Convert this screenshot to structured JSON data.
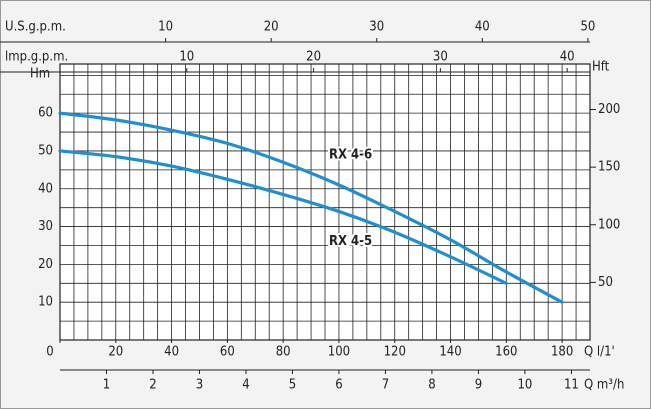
{
  "chart_data": {
    "type": "line",
    "x": [
      0,
      20,
      40,
      60,
      80,
      100,
      120,
      140,
      160,
      180
    ],
    "series": [
      {
        "name": "RX 4-6",
        "color": "#1e8fd0",
        "values": [
          60,
          58.2,
          55.5,
          52,
          47,
          41,
          34,
          26.5,
          18,
          10
        ]
      },
      {
        "name": "RX 4-5",
        "color": "#1e8fd0",
        "values": [
          50,
          48.5,
          46,
          42.5,
          38.5,
          34,
          28.5,
          22,
          15,
          null
        ]
      }
    ],
    "xlabel": "Q l/1'",
    "xlim": [
      0,
      190
    ],
    "xticks": [
      0,
      20,
      40,
      60,
      80,
      100,
      120,
      140,
      160,
      180
    ],
    "ylabel": "Hm",
    "ylim": [
      0,
      73
    ],
    "yticks": [
      10,
      20,
      30,
      40,
      50,
      60
    ],
    "y2label": "Hft",
    "y2lim": [
      0,
      239.5
    ],
    "y2ticks": [
      50,
      100,
      150,
      200
    ],
    "grid": true,
    "xgrid": [
      5,
      10,
      15,
      20,
      25,
      30,
      35,
      40,
      45,
      50,
      55,
      60,
      65,
      70,
      75,
      80,
      85,
      90,
      95,
      100,
      105,
      110,
      115,
      120,
      125,
      130,
      135,
      140,
      145,
      150,
      155,
      160,
      165,
      170,
      175,
      180,
      185
    ],
    "ygrid": [
      5,
      10,
      15,
      20,
      25,
      30,
      35,
      40,
      45,
      50,
      55,
      60,
      65,
      70
    ],
    "extra_x_axes": [
      {
        "label": "U.S.g.p.m.",
        "position": "top",
        "lim": [
          0,
          50.2
        ],
        "ticks": [
          10,
          20,
          30,
          40,
          50
        ]
      },
      {
        "label": "lmp.g.p.m.",
        "position": "top",
        "lim": [
          0,
          41.8
        ],
        "ticks": [
          10,
          20,
          30,
          40
        ]
      },
      {
        "label": "Q m³/h",
        "position": "bottom",
        "lim": [
          0,
          11.4
        ],
        "ticks": [
          1,
          2,
          3,
          4,
          5,
          6,
          7,
          8,
          9,
          10,
          11
        ]
      }
    ]
  }
}
